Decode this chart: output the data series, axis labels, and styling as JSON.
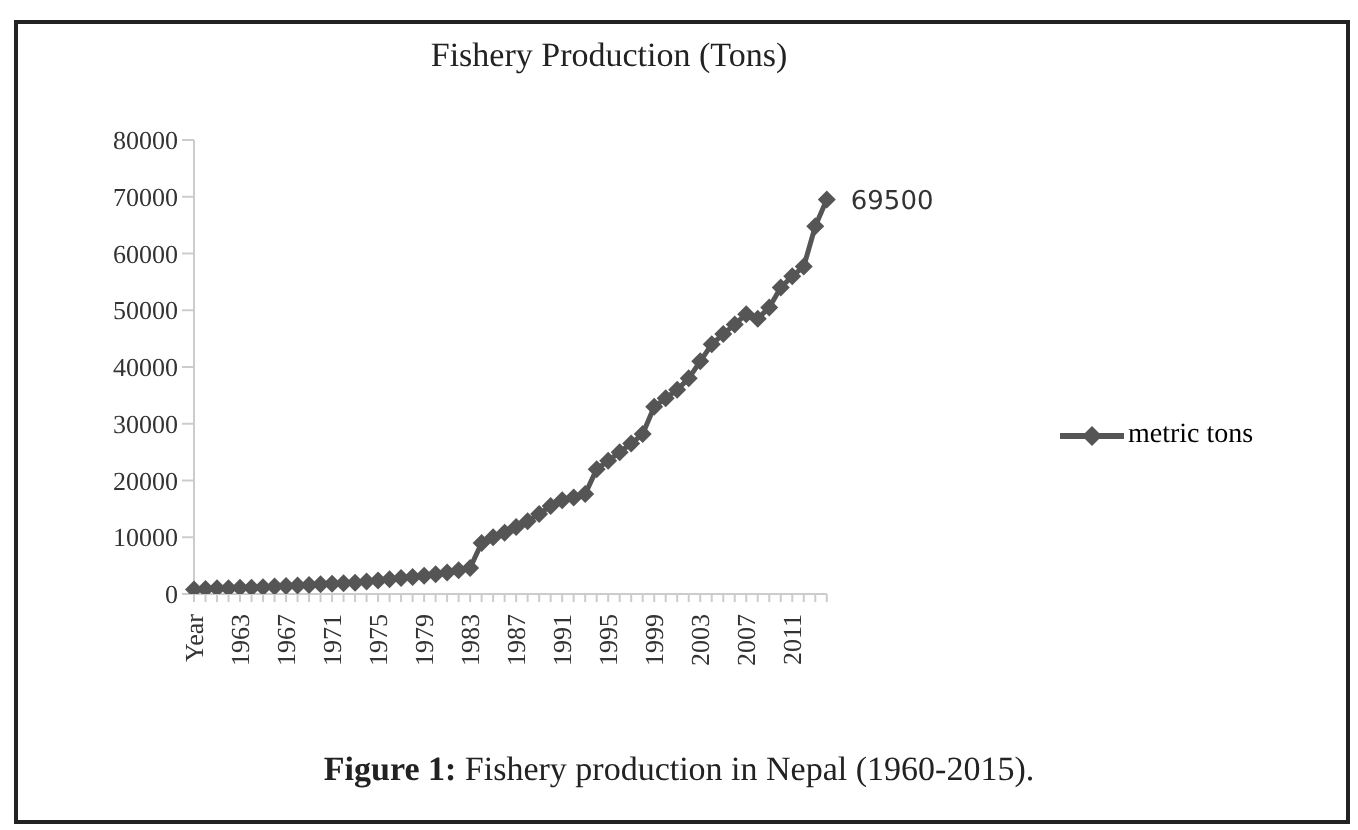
{
  "chart_data": {
    "type": "line",
    "title": "Fishery Production (Tons)",
    "categories": [
      "Year",
      null,
      null,
      null,
      "1963",
      null,
      null,
      null,
      "1967",
      null,
      null,
      null,
      "1971",
      null,
      null,
      null,
      "1975",
      null,
      null,
      null,
      "1979",
      null,
      null,
      null,
      "1983",
      null,
      null,
      null,
      "1987",
      null,
      null,
      null,
      "1991",
      null,
      null,
      null,
      "1995",
      null,
      null,
      null,
      "1999",
      null,
      null,
      null,
      "2003",
      null,
      null,
      null,
      "2007",
      null,
      null,
      null,
      "2011",
      null,
      null,
      null
    ],
    "series": [
      {
        "name": "metric tons",
        "color": "#555555",
        "values": [
          800,
          900,
          1000,
          1000,
          1100,
          1100,
          1200,
          1300,
          1400,
          1500,
          1600,
          1700,
          1800,
          1900,
          2000,
          2200,
          2400,
          2600,
          2800,
          3000,
          3200,
          3500,
          3800,
          4200,
          4600,
          9000,
          10000,
          10800,
          11800,
          12800,
          14100,
          15500,
          16500,
          17000,
          17600,
          22000,
          23500,
          25000,
          26500,
          28200,
          33000,
          34500,
          36000,
          38000,
          41000,
          44000,
          45800,
          47500,
          49300,
          48500,
          50500,
          54000,
          56000,
          57700,
          64800,
          69500
        ],
        "value_labels": [
          null,
          null,
          null,
          null,
          null,
          null,
          null,
          null,
          null,
          null,
          null,
          null,
          null,
          null,
          null,
          null,
          null,
          null,
          null,
          null,
          null,
          null,
          null,
          null,
          null,
          null,
          null,
          null,
          null,
          null,
          null,
          null,
          null,
          null,
          null,
          null,
          null,
          null,
          null,
          null,
          null,
          null,
          null,
          null,
          null,
          null,
          null,
          null,
          null,
          null,
          null,
          null,
          null,
          null,
          null,
          "69500"
        ]
      }
    ],
    "ylim": [
      0,
      80000
    ],
    "yticks": [
      0,
      10000,
      20000,
      30000,
      40000,
      50000,
      60000,
      70000,
      80000
    ],
    "grid": false,
    "legend": "right",
    "marker": "diamond",
    "line_style": "solid",
    "annotations": [
      "Figure 1: Fishery production in Nepal (1960-2015)."
    ]
  }
}
